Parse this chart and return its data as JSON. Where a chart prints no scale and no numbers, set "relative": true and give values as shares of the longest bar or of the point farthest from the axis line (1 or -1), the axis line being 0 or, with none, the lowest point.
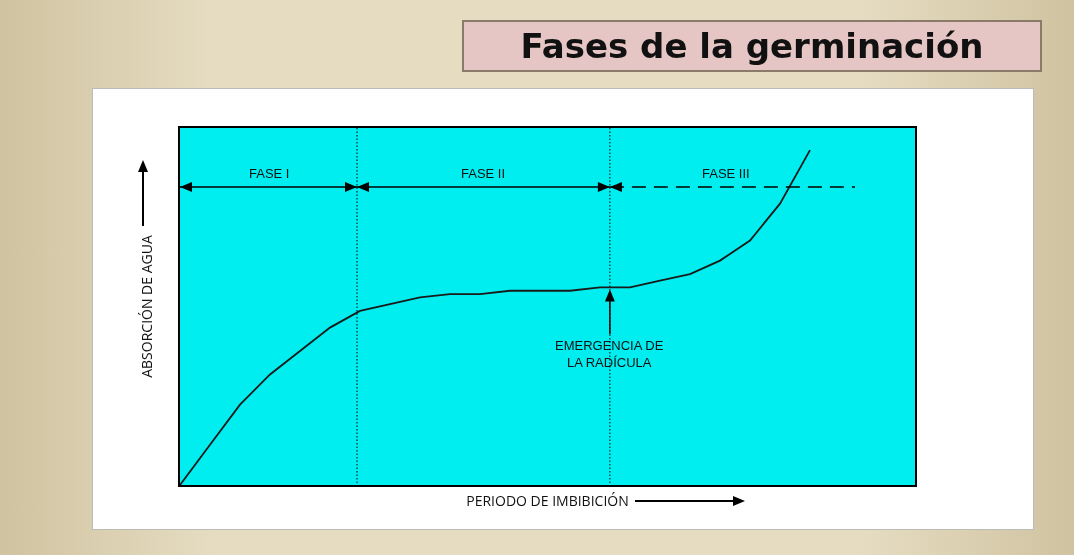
{
  "chart_data": {
    "type": "line",
    "title": "Fases de la germinación",
    "xlabel": "PERIODO DE IMBIBICIÓN",
    "ylabel": "ABSORCIÓN DE AGUA",
    "relative": true,
    "grid": false,
    "legend": false,
    "marker": "none",
    "line_style": "solid",
    "annotations": [
      "FASE I",
      "FASE II",
      "FASE III",
      "EMERGENCIA DE\nLA RADÍCULA"
    ],
    "categories": [
      null,
      null,
      null,
      null,
      null,
      null,
      null,
      null,
      null,
      null,
      null,
      null,
      null,
      null,
      null,
      null,
      null,
      null,
      null,
      null,
      null,
      null,
      null,
      null,
      null
    ],
    "series": [
      {
        "color": "#1a1a1a",
        "values": [
          0,
          0.12,
          0.24,
          0.33,
          0.4,
          0.47,
          0.52,
          0.54,
          0.56,
          0.57,
          0.57,
          0.58,
          0.58,
          0.58,
          0.59,
          0.59,
          0.61,
          0.63,
          0.67,
          0.73,
          0.84,
          1.0,
          null,
          null,
          null
        ]
      }
    ]
  }
}
